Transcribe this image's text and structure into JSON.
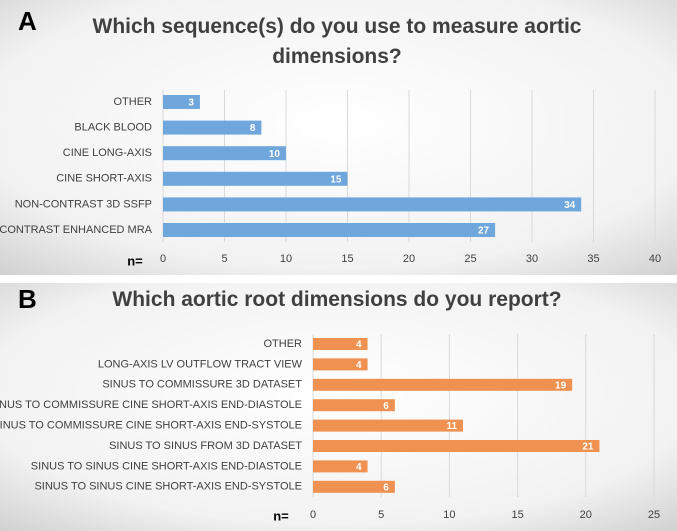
{
  "chart_data": [
    {
      "type": "bar",
      "panel_label": "A",
      "title": "Which sequence(s) do you use to measure aortic dimensions?",
      "categories": [
        "OTHER",
        "BLACK BLOOD",
        "CINE LONG-AXIS",
        "CINE SHORT-AXIS",
        "NON-CONTRAST 3D SSFP",
        "CONTRAST ENHANCED MRA"
      ],
      "values": [
        3,
        8,
        10,
        15,
        34,
        27
      ],
      "color": "#6fa6dc",
      "xlabel": "n=",
      "xlim": [
        0,
        40
      ],
      "xticks": [
        0,
        5,
        10,
        15,
        20,
        25,
        30,
        35,
        40
      ],
      "grid": true
    },
    {
      "type": "bar",
      "panel_label": "B",
      "title": "Which aortic root dimensions do you report?",
      "categories": [
        "OTHER",
        "LONG-AXIS LV OUTFLOW TRACT VIEW",
        "SINUS TO COMMISSURE 3D DATASET",
        "SINUS TO COMMISSURE CINE SHORT-AXIS END-DIASTOLE",
        "SINUS TO COMMISSURE CINE SHORT-AXIS END-SYSTOLE",
        "SINUS TO SINUS FROM 3D DATASET",
        "SINUS TO SINUS CINE SHORT-AXIS END-DIASTOLE",
        "SINUS TO SINUS CINE SHORT-AXIS END-SYSTOLE"
      ],
      "values": [
        4,
        4,
        19,
        6,
        11,
        21,
        4,
        6
      ],
      "color": "#ef9150",
      "xlabel": "n=",
      "xlim": [
        0,
        25
      ],
      "xticks": [
        0,
        5,
        10,
        15,
        20,
        25
      ],
      "grid": true
    }
  ]
}
